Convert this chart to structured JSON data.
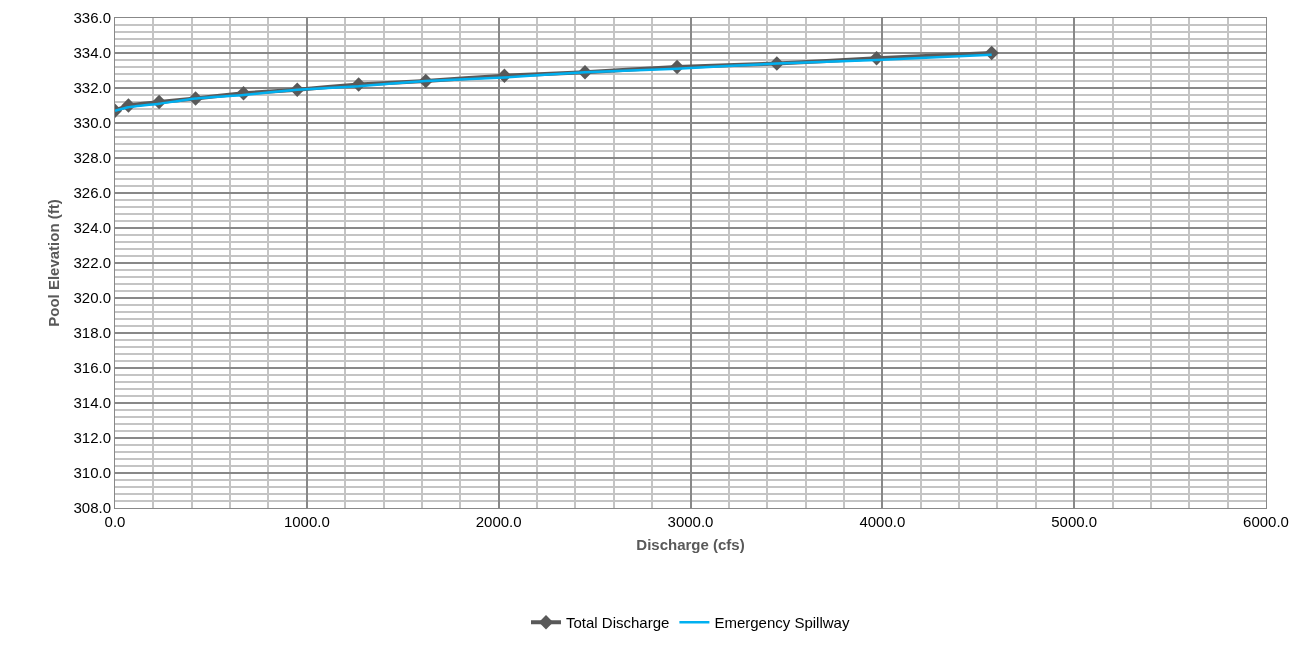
{
  "chart_data": {
    "type": "line",
    "xlabel": "Discharge (cfs)",
    "ylabel": "Pool Elevation (ft)",
    "xlim": [
      0,
      6000
    ],
    "xticks": [
      {
        "value": 0,
        "label": "0.0"
      },
      {
        "value": 1000,
        "label": "1000.0"
      },
      {
        "value": 2000,
        "label": "2000.0"
      },
      {
        "value": 3000,
        "label": "3000.0"
      },
      {
        "value": 4000,
        "label": "4000.0"
      },
      {
        "value": 5000,
        "label": "5000.0"
      },
      {
        "value": 6000,
        "label": "6000.0"
      }
    ],
    "ylim": [
      308,
      336
    ],
    "yticks": [
      {
        "value": 308,
        "label": "308.0"
      },
      {
        "value": 310,
        "label": "310.0"
      },
      {
        "value": 312,
        "label": "312.0"
      },
      {
        "value": 314,
        "label": "314.0"
      },
      {
        "value": 316,
        "label": "316.0"
      },
      {
        "value": 318,
        "label": "318.0"
      },
      {
        "value": 320,
        "label": "320.0"
      },
      {
        "value": 322,
        "label": "322.0"
      },
      {
        "value": 324,
        "label": "324.0"
      },
      {
        "value": 326,
        "label": "326.0"
      },
      {
        "value": 328,
        "label": "328.0"
      },
      {
        "value": 330,
        "label": "330.0"
      },
      {
        "value": 332,
        "label": "332.0"
      },
      {
        "value": 334,
        "label": "334.0"
      },
      {
        "value": 336,
        "label": "336.0"
      }
    ],
    "grid": true,
    "legend": "bottom",
    "x": [
      0,
      70,
      230,
      420,
      670,
      950,
      1270,
      1620,
      2030,
      2450,
      2930,
      3450,
      3970,
      4570
    ],
    "series": [
      {
        "name": "Total Discharge",
        "color": "#595959",
        "marker": "diamond",
        "values": [
          330.7,
          331.0,
          331.2,
          331.4,
          331.7,
          331.9,
          332.2,
          332.4,
          332.7,
          332.9,
          333.2,
          333.4,
          333.7,
          334.0
        ]
      },
      {
        "name": "Emergency Spillway",
        "color": "#00b0f0",
        "marker": "none",
        "values": [
          330.7,
          330.9,
          331.1,
          331.4,
          331.6,
          331.9,
          332.1,
          332.4,
          332.6,
          332.9,
          333.1,
          333.4,
          333.6,
          333.9
        ]
      }
    ]
  }
}
